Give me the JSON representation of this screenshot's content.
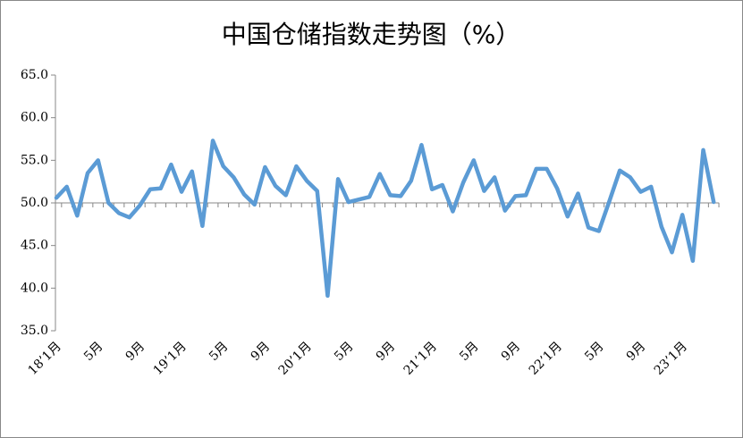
{
  "chart_data": {
    "type": "line",
    "title": "中国仓储指数走势图（%）",
    "categories": [
      "18’1月",
      null,
      null,
      null,
      "5月",
      null,
      null,
      null,
      "9月",
      null,
      null,
      null,
      "19’1月",
      null,
      null,
      null,
      "5月",
      null,
      null,
      null,
      "9月",
      null,
      null,
      null,
      "20’1月",
      null,
      null,
      null,
      "5月",
      null,
      null,
      null,
      "9月",
      null,
      null,
      null,
      "21’1月",
      null,
      null,
      null,
      "5月",
      null,
      null,
      null,
      "9月",
      null,
      null,
      null,
      "22’1月",
      null,
      null,
      null,
      "5月",
      null,
      null,
      null,
      "9月",
      null,
      null,
      null,
      "23’1月",
      null,
      null,
      null
    ],
    "series": [
      {
        "color": "#5b9bd5",
        "values": [
          50.6,
          51.9,
          48.5,
          53.5,
          55.0,
          50.0,
          48.8,
          48.3,
          49.7,
          51.6,
          51.7,
          54.5,
          51.3,
          53.7,
          47.3,
          57.3,
          54.3,
          53.0,
          51.0,
          49.8,
          54.2,
          52.0,
          50.9,
          54.3,
          52.6,
          51.4,
          39.1,
          52.8,
          50.1,
          50.4,
          50.7,
          53.4,
          50.9,
          50.8,
          52.6,
          56.8,
          51.6,
          52.1,
          49.0,
          52.4,
          55.0,
          51.4,
          53.0,
          49.1,
          50.8,
          50.9,
          54.0,
          54.0,
          51.7,
          48.4,
          51.1,
          47.1,
          46.7,
          50.2,
          53.8,
          53.0,
          51.3,
          51.9,
          47.2,
          44.2,
          48.6,
          43.2,
          56.2,
          50.1
        ]
      }
    ],
    "ylim": [
      35,
      65
    ],
    "yticks": [
      {
        "value": 35,
        "label": "35.0"
      },
      {
        "value": 40,
        "label": "40.0"
      },
      {
        "value": 45,
        "label": "45.0"
      },
      {
        "value": 50,
        "label": "50.0"
      },
      {
        "value": 55,
        "label": "55.0"
      },
      {
        "value": 60,
        "label": "60.0"
      },
      {
        "value": 65,
        "label": "65.0"
      }
    ],
    "xaxis_crosses": 50,
    "grid": false
  }
}
